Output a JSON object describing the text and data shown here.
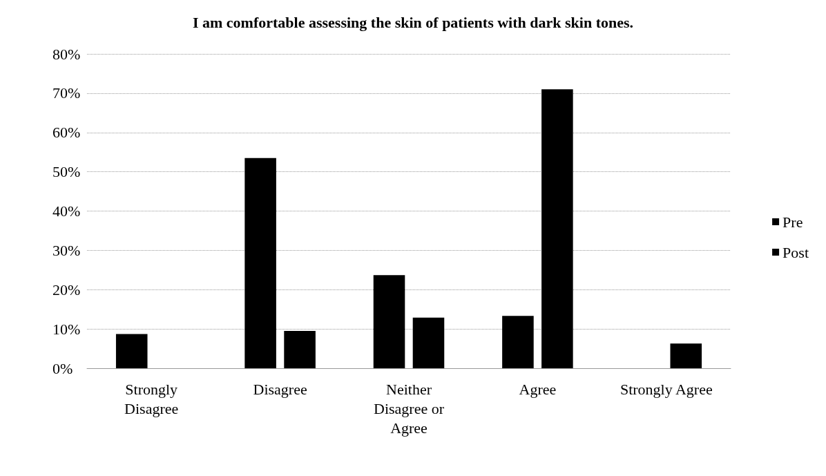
{
  "chart_data": {
    "type": "bar",
    "title": "I am comfortable assessing the skin of patients with dark skin tones.",
    "categories": [
      "Strongly\nDisagree",
      "Disagree",
      "Neither\nDisagree or\nAgree",
      "Agree",
      "Strongly Agree"
    ],
    "series": [
      {
        "name": "Pre",
        "color": "#000000",
        "values": [
          8.7,
          53.5,
          23.7,
          13.3,
          0
        ]
      },
      {
        "name": "Post",
        "color": "#000000",
        "values": [
          0,
          9.5,
          12.9,
          71,
          6.3
        ]
      }
    ],
    "ylim": [
      0,
      80
    ],
    "yticks": [
      {
        "value": 0,
        "label": "0%"
      },
      {
        "value": 10,
        "label": "10%"
      },
      {
        "value": 20,
        "label": "20%"
      },
      {
        "value": 30,
        "label": "30%"
      },
      {
        "value": 40,
        "label": "40%"
      },
      {
        "value": 50,
        "label": "50%"
      },
      {
        "value": 60,
        "label": "60%"
      },
      {
        "value": 70,
        "label": "70%"
      },
      {
        "value": 80,
        "label": "80%"
      }
    ],
    "grid": "y",
    "legend": "right"
  }
}
